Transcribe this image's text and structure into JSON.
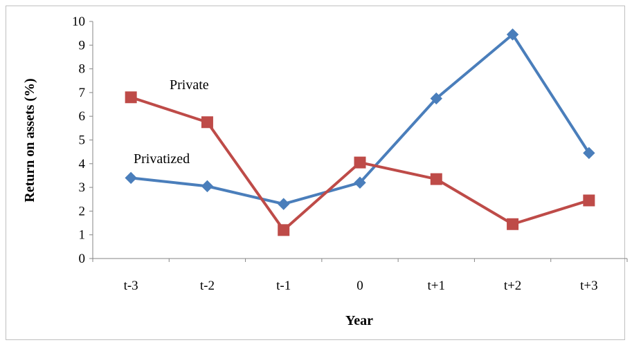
{
  "chart_data": {
    "type": "line",
    "title": "",
    "xlabel": "Year",
    "ylabel": "Return on assets (%)",
    "categories": [
      "t-3",
      "t-2",
      "t-1",
      "0",
      "t+1",
      "t+2",
      "t+3"
    ],
    "ylim": [
      0,
      10
    ],
    "yticks": [
      "0",
      "1",
      "2",
      "3",
      "4",
      "5",
      "6",
      "7",
      "8",
      "9",
      "10"
    ],
    "grid": false,
    "legend": "none",
    "series": [
      {
        "name": "Privatized",
        "color": "#4a7ebb",
        "marker": "diamond",
        "values": [
          3.4,
          3.05,
          2.3,
          3.2,
          6.75,
          9.45,
          4.45
        ]
      },
      {
        "name": "Private",
        "color": "#be4b48",
        "marker": "square",
        "values": [
          6.8,
          5.75,
          1.2,
          4.05,
          3.35,
          1.45,
          2.45
        ]
      }
    ]
  }
}
